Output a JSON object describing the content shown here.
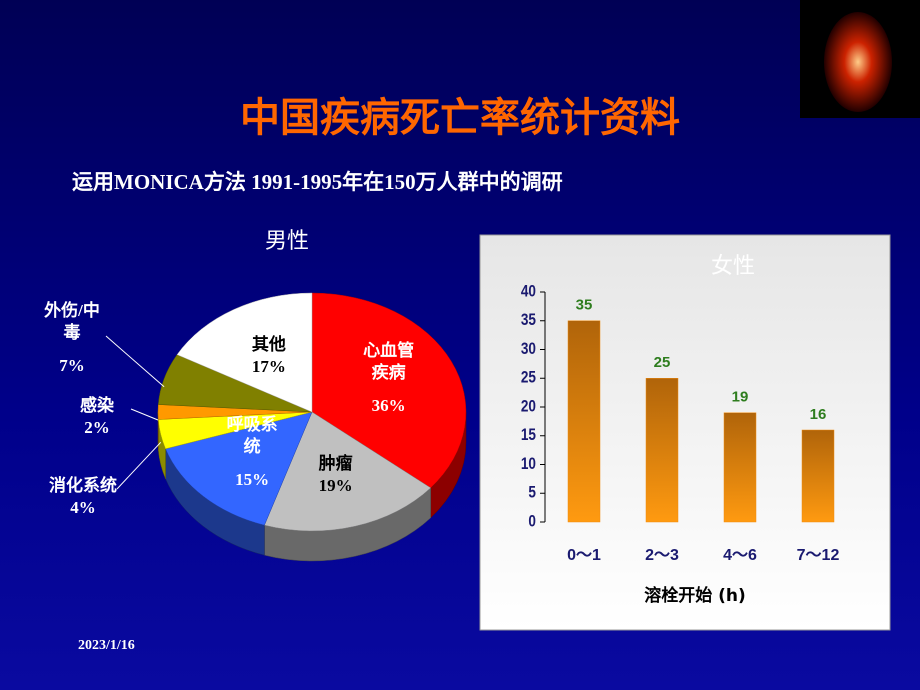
{
  "title": "中国疾病死亡率统计资料",
  "subtitle": "运用MONICA方法 1991-1995年在150万人群中的调研",
  "date": "2023/1/16",
  "chart_data": [
    {
      "type": "pie",
      "title": "男性",
      "categories": [
        "心血管疾病",
        "肿瘤",
        "呼吸系统",
        "消化系统",
        "感染",
        "外伤/中毒",
        "其他"
      ],
      "values": [
        36,
        19,
        15,
        4,
        2,
        7,
        17
      ],
      "value_labels": [
        "36%",
        "19%",
        "15%",
        "4%",
        "2%",
        "7%",
        "17%"
      ],
      "colors": [
        "#ff0000",
        "#c0c0c0",
        "#3366ff",
        "#ffff00",
        "#ff9900",
        "#808000",
        "#ffffff"
      ]
    },
    {
      "type": "bar",
      "title": "女性",
      "categories": [
        "0～1",
        "2～3",
        "4～6",
        "7～12"
      ],
      "values": [
        35,
        25,
        19,
        16
      ],
      "color": "#f08c10",
      "ylim": [
        0,
        40
      ],
      "yticks": [
        0,
        5,
        10,
        15,
        20,
        25,
        30,
        35,
        40
      ],
      "x_label": "溶栓开始 (h)"
    }
  ]
}
